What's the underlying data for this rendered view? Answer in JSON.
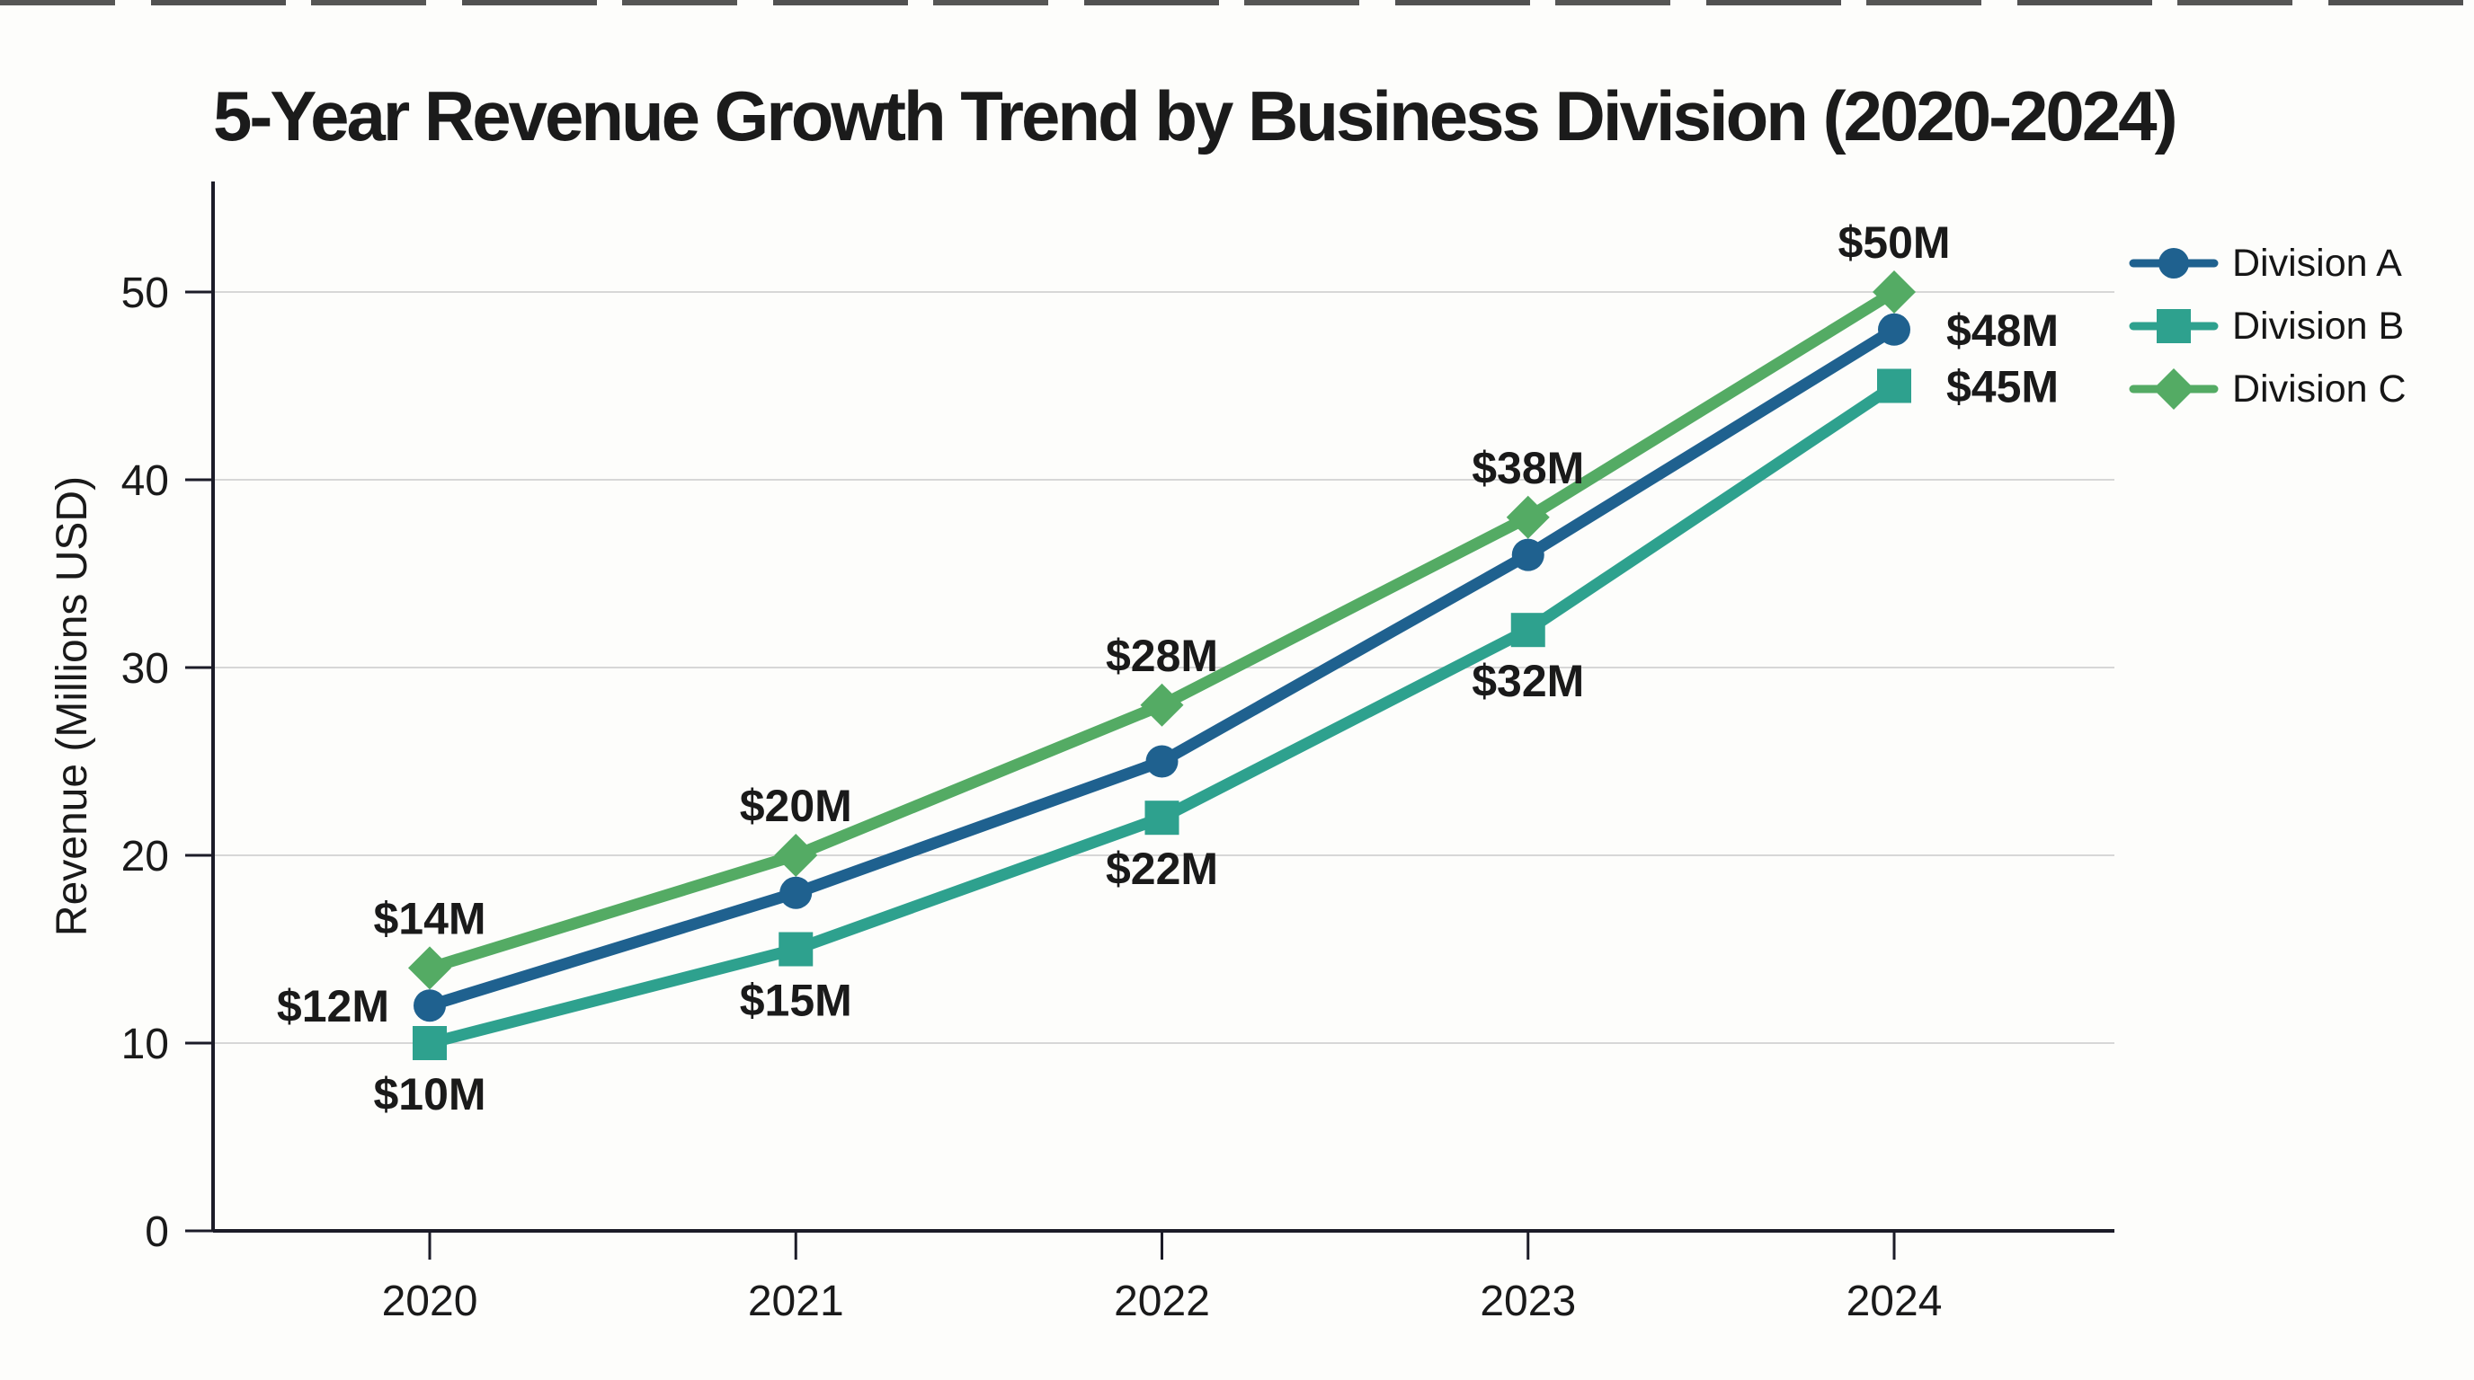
{
  "page": {
    "background_color": "#fdfdfb"
  },
  "chart_data": {
    "type": "line",
    "title": "5-Year Revenue Growth Trend by Business Division (2020-2024)",
    "xlabel": "",
    "ylabel": "Revenue (Millions USD)",
    "categories": [
      "2020",
      "2021",
      "2022",
      "2023",
      "2024"
    ],
    "yticks": [
      0,
      10,
      20,
      30,
      40,
      50
    ],
    "ylim": [
      0,
      56
    ],
    "grid": "horizontal",
    "legend_position": "right-top",
    "axis_color": "#1c1c28",
    "grid_color": "#d7d7d7",
    "text_color": "#1a1a1a",
    "series": [
      {
        "name": "Division A",
        "color": "#1f618f",
        "marker": "circle",
        "values": [
          12,
          18,
          25,
          36,
          48
        ],
        "point_labels": [
          {
            "text": "$12M",
            "position": "left"
          },
          null,
          null,
          null,
          {
            "text": "$48M",
            "position": "right"
          }
        ]
      },
      {
        "name": "Division B",
        "color": "#2ea18e",
        "marker": "square",
        "values": [
          10,
          15,
          22,
          32,
          45
        ],
        "point_labels": [
          {
            "text": "$10M",
            "position": "below"
          },
          {
            "text": "$15M",
            "position": "below"
          },
          {
            "text": "$22M",
            "position": "below"
          },
          {
            "text": "$32M",
            "position": "below"
          },
          {
            "text": "$45M",
            "position": "right"
          }
        ]
      },
      {
        "name": "Division C",
        "color": "#54ab64",
        "marker": "diamond",
        "values": [
          14,
          20,
          28,
          38,
          50
        ],
        "point_labels": [
          {
            "text": "$14M",
            "position": "above"
          },
          {
            "text": "$20M",
            "position": "above"
          },
          {
            "text": "$28M",
            "position": "above"
          },
          {
            "text": "$38M",
            "position": "above"
          },
          {
            "text": "$50M",
            "position": "above"
          }
        ]
      }
    ]
  }
}
